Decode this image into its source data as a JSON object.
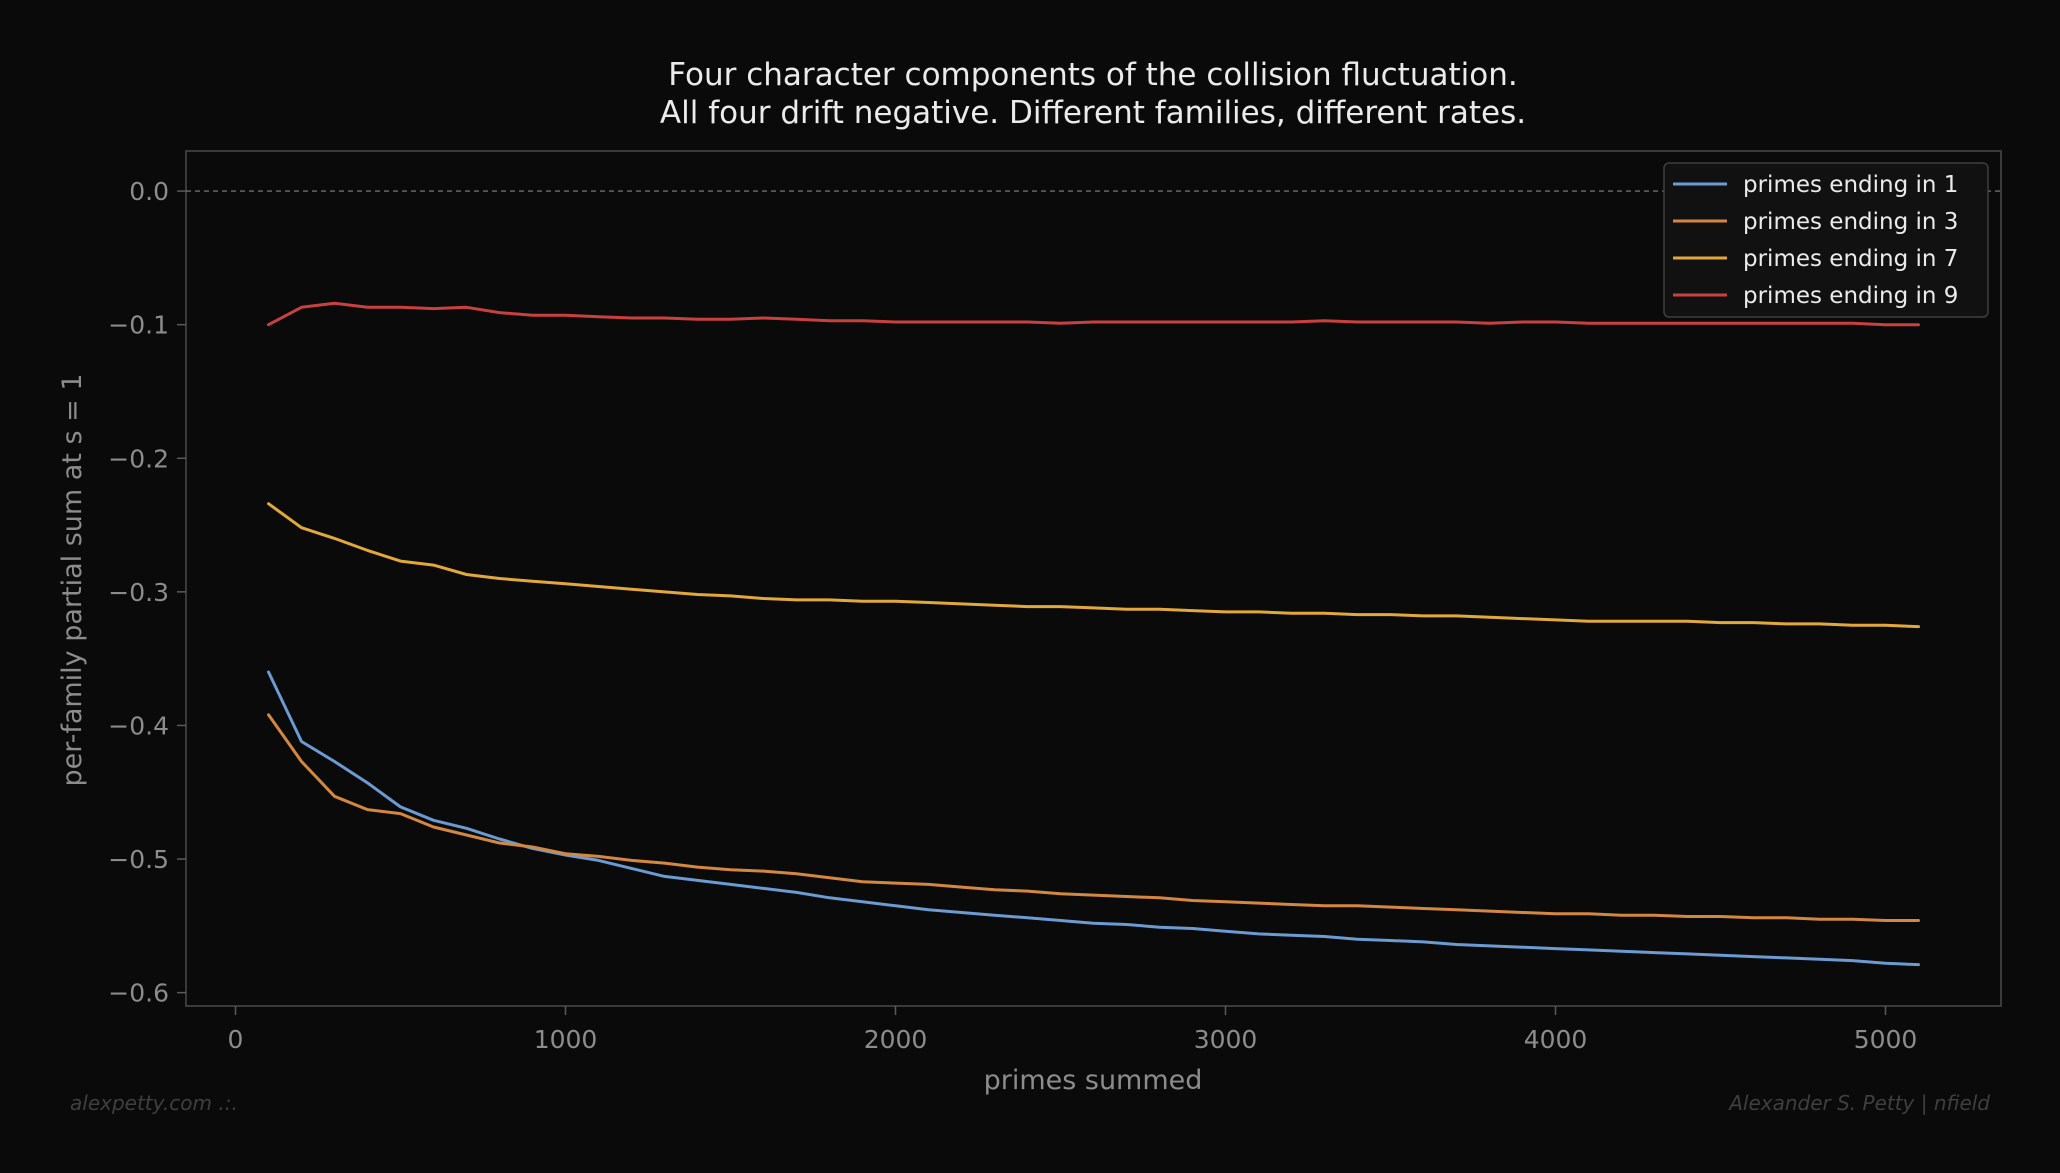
{
  "chart_data": {
    "type": "line",
    "title": "Four character components of the collision fluctuation.",
    "subtitle": "All four drift negative. Different families, different rates.",
    "xlabel": "primes summed",
    "ylabel": "per-family partial sum at s = 1",
    "xlim": [
      -150,
      5350
    ],
    "ylim": [
      -0.61,
      0.03
    ],
    "xticks": [
      0,
      1000,
      2000,
      3000,
      4000,
      5000
    ],
    "xtick_labels": [
      "0",
      "1000",
      "2000",
      "3000",
      "4000",
      "5000"
    ],
    "yticks": [
      0.0,
      -0.1,
      -0.2,
      -0.3,
      -0.4,
      -0.5,
      -0.6
    ],
    "ytick_labels": [
      "0.0",
      "−0.1",
      "−0.2",
      "−0.3",
      "−0.4",
      "−0.5",
      "−0.6"
    ],
    "grid": false,
    "reference_line": {
      "y": 0.0,
      "style": "dashed"
    },
    "legend_position": "top-right",
    "x": [
      100,
      200,
      300,
      400,
      500,
      600,
      700,
      800,
      900,
      1000,
      1100,
      1200,
      1300,
      1400,
      1500,
      1600,
      1700,
      1800,
      1900,
      2000,
      2100,
      2200,
      2300,
      2400,
      2500,
      2600,
      2700,
      2800,
      2900,
      3000,
      3100,
      3200,
      3300,
      3400,
      3500,
      3600,
      3700,
      3800,
      3900,
      4000,
      4100,
      4200,
      4300,
      4400,
      4500,
      4600,
      4700,
      4800,
      4900,
      5000,
      5100
    ],
    "series": [
      {
        "name": "primes ending in 1",
        "color": "#6b9bd2",
        "values": [
          -0.36,
          -0.412,
          -0.427,
          -0.443,
          -0.461,
          -0.471,
          -0.477,
          -0.485,
          -0.492,
          -0.497,
          -0.501,
          -0.507,
          -0.513,
          -0.516,
          -0.519,
          -0.522,
          -0.525,
          -0.529,
          -0.532,
          -0.535,
          -0.538,
          -0.54,
          -0.542,
          -0.544,
          -0.546,
          -0.548,
          -0.549,
          -0.551,
          -0.552,
          -0.554,
          -0.556,
          -0.557,
          -0.558,
          -0.56,
          -0.561,
          -0.562,
          -0.564,
          -0.565,
          -0.566,
          -0.567,
          -0.568,
          -0.569,
          -0.57,
          -0.571,
          -0.572,
          -0.573,
          -0.574,
          -0.575,
          -0.576,
          -0.578,
          -0.579
        ]
      },
      {
        "name": "primes ending in 3",
        "color": "#d4873f",
        "values": [
          -0.392,
          -0.427,
          -0.453,
          -0.463,
          -0.466,
          -0.476,
          -0.482,
          -0.488,
          -0.491,
          -0.496,
          -0.498,
          -0.501,
          -0.503,
          -0.506,
          -0.508,
          -0.509,
          -0.511,
          -0.514,
          -0.517,
          -0.518,
          -0.519,
          -0.521,
          -0.523,
          -0.524,
          -0.526,
          -0.527,
          -0.528,
          -0.529,
          -0.531,
          -0.532,
          -0.533,
          -0.534,
          -0.535,
          -0.535,
          -0.536,
          -0.537,
          -0.538,
          -0.539,
          -0.54,
          -0.541,
          -0.541,
          -0.542,
          -0.542,
          -0.543,
          -0.543,
          -0.544,
          -0.544,
          -0.545,
          -0.545,
          -0.546,
          -0.546
        ]
      },
      {
        "name": "primes ending in 7",
        "color": "#e3a83a",
        "values": [
          -0.234,
          -0.252,
          -0.26,
          -0.269,
          -0.277,
          -0.28,
          -0.287,
          -0.29,
          -0.292,
          -0.294,
          -0.296,
          -0.298,
          -0.3,
          -0.302,
          -0.303,
          -0.305,
          -0.306,
          -0.306,
          -0.307,
          -0.307,
          -0.308,
          -0.309,
          -0.31,
          -0.311,
          -0.311,
          -0.312,
          -0.313,
          -0.313,
          -0.314,
          -0.315,
          -0.315,
          -0.316,
          -0.316,
          -0.317,
          -0.317,
          -0.318,
          -0.318,
          -0.319,
          -0.32,
          -0.321,
          -0.322,
          -0.322,
          -0.322,
          -0.322,
          -0.323,
          -0.323,
          -0.324,
          -0.324,
          -0.325,
          -0.325,
          -0.326
        ]
      },
      {
        "name": "primes ending in 9",
        "color": "#c9403f",
        "values": [
          -0.1,
          -0.087,
          -0.084,
          -0.087,
          -0.087,
          -0.088,
          -0.087,
          -0.091,
          -0.093,
          -0.093,
          -0.094,
          -0.095,
          -0.095,
          -0.096,
          -0.096,
          -0.095,
          -0.096,
          -0.097,
          -0.097,
          -0.098,
          -0.098,
          -0.098,
          -0.098,
          -0.098,
          -0.099,
          -0.098,
          -0.098,
          -0.098,
          -0.098,
          -0.098,
          -0.098,
          -0.098,
          -0.097,
          -0.098,
          -0.098,
          -0.098,
          -0.098,
          -0.099,
          -0.098,
          -0.098,
          -0.099,
          -0.099,
          -0.099,
          -0.099,
          -0.099,
          -0.099,
          -0.099,
          -0.099,
          -0.099,
          -0.1,
          -0.1
        ]
      }
    ]
  },
  "footer": {
    "left": "alexpetty.com  .:.",
    "right": "Alexander S. Petty  |  nfield"
  },
  "colors": {
    "background": "#0a0a0a",
    "axes_frame": "#3a3a3a",
    "text": "#ebebeb",
    "muted_text": "#8c8c8c"
  }
}
